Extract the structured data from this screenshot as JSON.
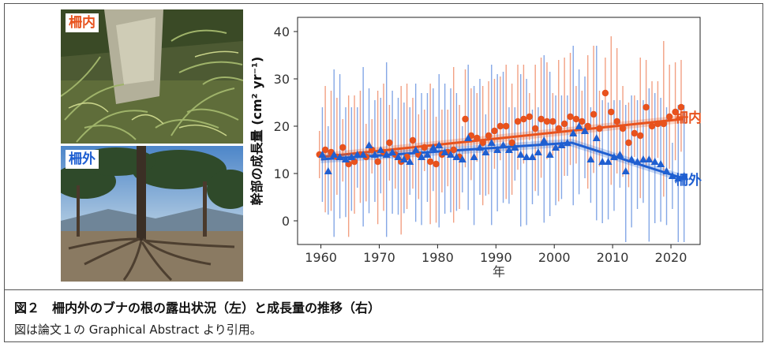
{
  "photos": {
    "inside_tag": "柵内",
    "outside_tag": "柵外",
    "inside_color": "#e8521d",
    "outside_color": "#1f5fd1"
  },
  "caption": {
    "title": "図２　柵内外のブナの根の露出状況（左）と成長量の推移（右）",
    "subtitle": "図は論文１の Graphical Abstract より引用。"
  },
  "chart_data": {
    "type": "scatter",
    "xlabel": "年",
    "ylabel": "幹部の成長量 (cm² yr⁻¹)",
    "xlim": [
      1956,
      2025
    ],
    "ylim": [
      -5,
      43
    ],
    "xticks": [
      1960,
      1970,
      1980,
      1990,
      2000,
      2010,
      2020
    ],
    "yticks": [
      0,
      10,
      20,
      30,
      40
    ],
    "grid": false,
    "legend": "direct labels at right end of each series",
    "series": [
      {
        "name": "柵内",
        "color": "#e8521d",
        "marker": "circle",
        "x": [
          1960,
          1961,
          1962,
          1963,
          1964,
          1965,
          1966,
          1967,
          1968,
          1969,
          1970,
          1971,
          1972,
          1973,
          1974,
          1975,
          1976,
          1977,
          1978,
          1979,
          1980,
          1981,
          1982,
          1983,
          1984,
          1985,
          1986,
          1987,
          1988,
          1989,
          1990,
          1991,
          1992,
          1993,
          1994,
          1995,
          1996,
          1997,
          1998,
          1999,
          2000,
          2001,
          2002,
          2003,
          2004,
          2005,
          2006,
          2007,
          2008,
          2009,
          2010,
          2011,
          2012,
          2013,
          2014,
          2015,
          2016,
          2017,
          2018,
          2019,
          2020,
          2021,
          2022
        ],
        "y": [
          14,
          15,
          14.5,
          13.5,
          15.5,
          12,
          12.5,
          14,
          13.5,
          15,
          12.5,
          14.5,
          16.5,
          14,
          12.5,
          13.5,
          17,
          14,
          15.5,
          12.5,
          12,
          14,
          14.5,
          15,
          13.5,
          21.5,
          18,
          17.5,
          16.5,
          18,
          19,
          20,
          20,
          16.5,
          21,
          21.5,
          22,
          19.5,
          21.5,
          21,
          21,
          19.5,
          20.5,
          22,
          21.5,
          21,
          20,
          22.5,
          19.5,
          27,
          23,
          21,
          19.5,
          16.5,
          18.5,
          18,
          24,
          20,
          20.5,
          20.5,
          22,
          23,
          24
        ],
        "trend": {
          "x": [
            1960,
            2022
          ],
          "y": [
            13.5,
            21.5
          ]
        }
      },
      {
        "name": "柵外",
        "color": "#1f5fd1",
        "marker": "triangle",
        "x": [
          1960,
          1961,
          1962,
          1963,
          1964,
          1965,
          1966,
          1967,
          1968,
          1969,
          1970,
          1971,
          1972,
          1973,
          1974,
          1975,
          1976,
          1977,
          1978,
          1979,
          1980,
          1981,
          1982,
          1983,
          1984,
          1985,
          1986,
          1987,
          1988,
          1989,
          1990,
          1991,
          1992,
          1993,
          1994,
          1995,
          1996,
          1997,
          1998,
          1999,
          2000,
          2001,
          2002,
          2003,
          2004,
          2005,
          2006,
          2007,
          2008,
          2009,
          2010,
          2011,
          2012,
          2013,
          2014,
          2015,
          2016,
          2017,
          2018,
          2019,
          2020,
          2021,
          2022
        ],
        "y": [
          14,
          10.5,
          14,
          13.5,
          13,
          13.5,
          14,
          14,
          16,
          14,
          15,
          14,
          14.5,
          13.5,
          13,
          12.5,
          15,
          13.5,
          14,
          15.5,
          16,
          14.5,
          14,
          13.5,
          13,
          17.5,
          13.5,
          15.5,
          14.5,
          16.5,
          15,
          16,
          15,
          15.5,
          14,
          13.5,
          13.5,
          14.5,
          17,
          14,
          15.5,
          16,
          16.5,
          18.5,
          20,
          19,
          13,
          17.5,
          12.5,
          12.5,
          13.5,
          14,
          10.5,
          13,
          12.5,
          13,
          13,
          12.5,
          12,
          10.5,
          9.5,
          9,
          9.5
        ],
        "trend": {
          "x": [
            1960,
            2003,
            2022
          ],
          "y": [
            13,
            16.5,
            9
          ]
        }
      }
    ]
  }
}
